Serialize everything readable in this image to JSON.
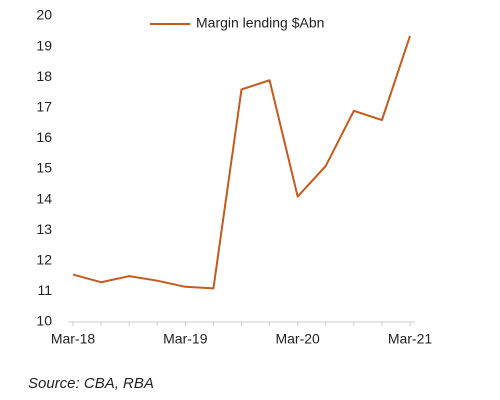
{
  "chart_data": {
    "type": "line",
    "categories": [
      "Mar-18",
      null,
      null,
      null,
      "Mar-19",
      null,
      null,
      null,
      "Mar-20",
      null,
      null,
      null,
      "Mar-21"
    ],
    "series": [
      {
        "name": "Margin lending $Abn",
        "color": "#c45a1c",
        "values": [
          11.55,
          11.3,
          11.5,
          11.35,
          11.15,
          11.1,
          17.6,
          17.9,
          14.1,
          15.1,
          16.9,
          16.6,
          19.35
        ]
      }
    ],
    "ylim": [
      10,
      20
    ],
    "yticks": [
      10,
      11,
      12,
      13,
      14,
      15,
      16,
      17,
      18,
      19,
      20
    ],
    "legend": "top",
    "source": "Source:  CBA, RBA"
  }
}
